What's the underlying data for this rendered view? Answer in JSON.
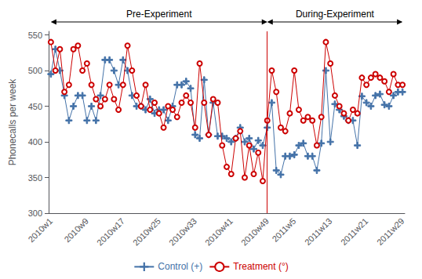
{
  "chart_data": {
    "type": "line",
    "categories": [
      "2010w1",
      null,
      null,
      null,
      null,
      null,
      null,
      null,
      "2010w9",
      null,
      null,
      null,
      null,
      null,
      null,
      null,
      "2010w17",
      null,
      null,
      null,
      null,
      null,
      null,
      null,
      "2010w25",
      null,
      null,
      null,
      null,
      null,
      null,
      null,
      "2010w33",
      null,
      null,
      null,
      null,
      null,
      null,
      null,
      "2010w41",
      null,
      null,
      null,
      null,
      null,
      null,
      null,
      "2010w49",
      null,
      null,
      null,
      null,
      null,
      "2011w5",
      null,
      null,
      null,
      null,
      null,
      null,
      null,
      "2011w13",
      null,
      null,
      null,
      null,
      null,
      null,
      null,
      "2011w21",
      null,
      null,
      null,
      null,
      null,
      null,
      null,
      "2011w29"
    ],
    "ylabel": "Phonecalls per week",
    "ylim": [
      300,
      555
    ],
    "yticks": [
      300,
      350,
      400,
      450,
      500,
      550
    ],
    "grid": false,
    "legend": "bottom",
    "series": [
      {
        "name": "Control (+)",
        "color": "#4472a8",
        "marker": "plus",
        "values": [
          495,
          530,
          500,
          465,
          430,
          450,
          465,
          465,
          430,
          450,
          430,
          465,
          515,
          515,
          500,
          480,
          515,
          500,
          465,
          450,
          450,
          445,
          460,
          440,
          445,
          445,
          430,
          450,
          480,
          480,
          485,
          475,
          410,
          405,
          487,
          410,
          455,
          408,
          408,
          405,
          400,
          405,
          420,
          400,
          405,
          390,
          402,
          395,
          420,
          455,
          360,
          354,
          380,
          380,
          382,
          395,
          398,
          380,
          380,
          360,
          398,
          500,
          400,
          453,
          445,
          436,
          430,
          430,
          395,
          464,
          455,
          450,
          465,
          467,
          452,
          450,
          465,
          470,
          470
        ]
      },
      {
        "name": "Treatment (°)",
        "color": "#cc0000",
        "marker": "circle",
        "values": [
          540,
          500,
          530,
          470,
          480,
          530,
          535,
          500,
          510,
          480,
          460,
          450,
          460,
          480,
          460,
          445,
          480,
          535,
          500,
          465,
          450,
          480,
          445,
          455,
          440,
          420,
          450,
          445,
          435,
          455,
          465,
          455,
          420,
          510,
          455,
          410,
          460,
          455,
          395,
          365,
          355,
          405,
          415,
          350,
          395,
          355,
          385,
          345,
          430,
          500,
          470,
          420,
          415,
          440,
          500,
          445,
          430,
          435,
          430,
          395,
          435,
          540,
          510,
          465,
          450,
          440,
          430,
          445,
          440,
          490,
          480,
          490,
          495,
          490,
          485,
          470,
          495,
          480,
          480
        ]
      }
    ],
    "vline": {
      "x": "2010w49",
      "color": "#cc0000"
    },
    "annotations": [
      {
        "text": "Pre-Experiment",
        "from": "2010w1",
        "to": "2010w49"
      },
      {
        "text": "During-Experiment",
        "from": "2010w49",
        "to": "2011w29"
      }
    ]
  }
}
